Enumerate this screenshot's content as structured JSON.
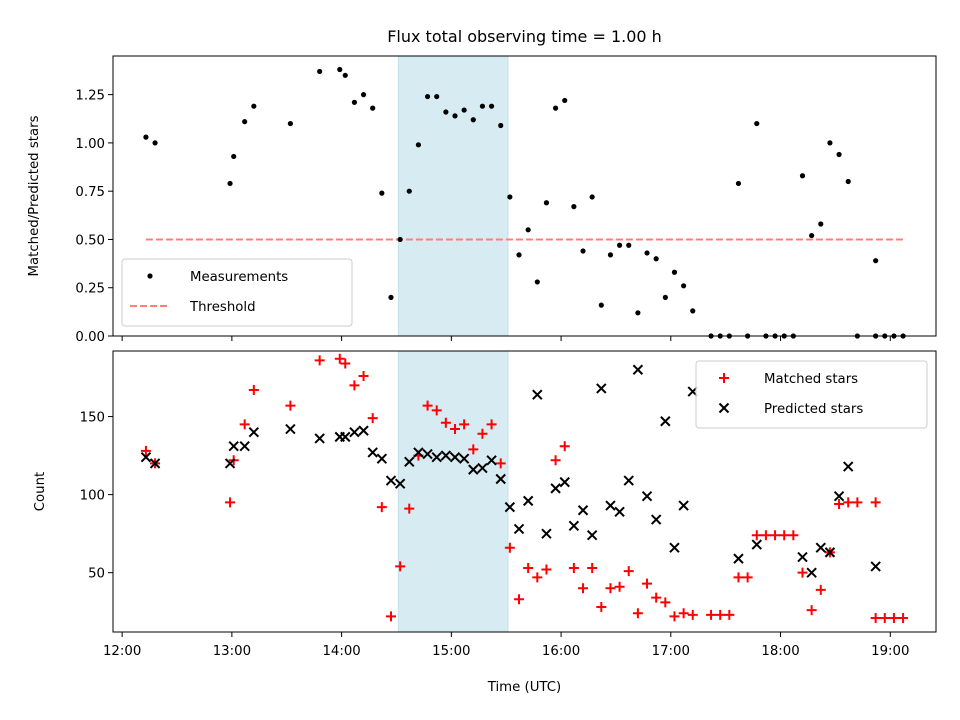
{
  "chart_data": [
    {
      "type": "scatter",
      "title": "Flux total observing time = 1.00 h",
      "ylabel": "Matched/Predicted stars",
      "xlabel": "",
      "x_axis": "time",
      "xlim": [
        "11:55",
        "19:25"
      ],
      "ylim": [
        0,
        1.45
      ],
      "yticks": [
        "0.00",
        "0.25",
        "0.50",
        "0.75",
        "1.00",
        "1.25"
      ],
      "shaded_interval": [
        "14:31",
        "15:31"
      ],
      "legend": {
        "position": "lower-left",
        "entries": [
          "Measurements",
          "Threshold"
        ]
      },
      "threshold": {
        "name": "Threshold",
        "value": 0.5,
        "x_start": "12:13",
        "x_end": "19:07",
        "color": "#ff7f7f"
      },
      "series": [
        {
          "name": "Measurements",
          "color": "#000000",
          "marker": "dot",
          "points": [
            [
              "12:13",
              1.03
            ],
            [
              "12:18",
              1.0
            ],
            [
              "12:59",
              0.79
            ],
            [
              "13:01",
              0.93
            ],
            [
              "13:07",
              1.11
            ],
            [
              "13:12",
              1.19
            ],
            [
              "13:32",
              1.1
            ],
            [
              "13:48",
              1.37
            ],
            [
              "13:59",
              1.38
            ],
            [
              "14:02",
              1.35
            ],
            [
              "14:07",
              1.21
            ],
            [
              "14:12",
              1.25
            ],
            [
              "14:17",
              1.18
            ],
            [
              "14:22",
              0.74
            ],
            [
              "14:27",
              0.2
            ],
            [
              "14:32",
              0.5
            ],
            [
              "14:37",
              0.75
            ],
            [
              "14:42",
              0.99
            ],
            [
              "14:47",
              1.24
            ],
            [
              "14:52",
              1.24
            ],
            [
              "14:57",
              1.16
            ],
            [
              "15:02",
              1.14
            ],
            [
              "15:07",
              1.17
            ],
            [
              "15:12",
              1.12
            ],
            [
              "15:17",
              1.19
            ],
            [
              "15:22",
              1.19
            ],
            [
              "15:27",
              1.09
            ],
            [
              "15:32",
              0.72
            ],
            [
              "15:37",
              0.42
            ],
            [
              "15:42",
              0.55
            ],
            [
              "15:47",
              0.28
            ],
            [
              "15:52",
              0.69
            ],
            [
              "15:57",
              1.18
            ],
            [
              "16:02",
              1.22
            ],
            [
              "16:07",
              0.67
            ],
            [
              "16:12",
              0.44
            ],
            [
              "16:17",
              0.72
            ],
            [
              "16:22",
              0.16
            ],
            [
              "16:27",
              0.42
            ],
            [
              "16:32",
              0.47
            ],
            [
              "16:37",
              0.47
            ],
            [
              "16:42",
              0.12
            ],
            [
              "16:47",
              0.43
            ],
            [
              "16:52",
              0.4
            ],
            [
              "16:57",
              0.2
            ],
            [
              "17:02",
              0.33
            ],
            [
              "17:07",
              0.26
            ],
            [
              "17:12",
              0.13
            ],
            [
              "17:22",
              0.0
            ],
            [
              "17:27",
              0.0
            ],
            [
              "17:32",
              0.0
            ],
            [
              "17:37",
              0.79
            ],
            [
              "17:42",
              0.0
            ],
            [
              "17:47",
              1.1
            ],
            [
              "17:52",
              0.0
            ],
            [
              "17:57",
              0.0
            ],
            [
              "18:02",
              0.0
            ],
            [
              "18:07",
              0.0
            ],
            [
              "18:12",
              0.83
            ],
            [
              "18:17",
              0.52
            ],
            [
              "18:22",
              0.58
            ],
            [
              "18:27",
              1.0
            ],
            [
              "18:32",
              0.94
            ],
            [
              "18:37",
              0.8
            ],
            [
              "18:42",
              0.0
            ],
            [
              "18:52",
              0.39
            ],
            [
              "18:52",
              0.0
            ],
            [
              "18:57",
              0.0
            ],
            [
              "19:02",
              0.0
            ],
            [
              "19:07",
              0.0
            ]
          ]
        }
      ]
    },
    {
      "type": "scatter",
      "title": "",
      "ylabel": "Count",
      "xlabel": "Time (UTC)",
      "x_axis": "time",
      "xlim": [
        "11:55",
        "19:25"
      ],
      "ylim": [
        12,
        192
      ],
      "yticks": [
        "50",
        "100",
        "150"
      ],
      "xticks": [
        "12:00",
        "13:00",
        "14:00",
        "15:00",
        "16:00",
        "17:00",
        "18:00",
        "19:00"
      ],
      "shaded_interval": [
        "14:31",
        "15:31"
      ],
      "legend": {
        "position": "upper-right",
        "entries": [
          "Matched stars",
          "Predicted stars"
        ]
      },
      "series": [
        {
          "name": "Matched stars",
          "color": "#ff0000",
          "marker": "plus",
          "points": [
            [
              "12:13",
              128
            ],
            [
              "12:18",
              120
            ],
            [
              "12:59",
              95
            ],
            [
              "13:01",
              122
            ],
            [
              "13:07",
              145
            ],
            [
              "13:12",
              167
            ],
            [
              "13:32",
              157
            ],
            [
              "13:48",
              186
            ],
            [
              "13:59",
              187
            ],
            [
              "14:02",
              184
            ],
            [
              "14:07",
              170
            ],
            [
              "14:12",
              176
            ],
            [
              "14:17",
              149
            ],
            [
              "14:22",
              92
            ],
            [
              "14:27",
              22
            ],
            [
              "14:32",
              54
            ],
            [
              "14:37",
              91
            ],
            [
              "14:42",
              125
            ],
            [
              "14:47",
              157
            ],
            [
              "14:52",
              154
            ],
            [
              "14:57",
              146
            ],
            [
              "15:02",
              142
            ],
            [
              "15:07",
              145
            ],
            [
              "15:12",
              129
            ],
            [
              "15:17",
              139
            ],
            [
              "15:22",
              145
            ],
            [
              "15:27",
              120
            ],
            [
              "15:32",
              66
            ],
            [
              "15:37",
              33
            ],
            [
              "15:42",
              53
            ],
            [
              "15:47",
              47
            ],
            [
              "15:52",
              52
            ],
            [
              "15:57",
              122
            ],
            [
              "16:02",
              131
            ],
            [
              "16:07",
              53
            ],
            [
              "16:12",
              40
            ],
            [
              "16:17",
              53
            ],
            [
              "16:22",
              28
            ],
            [
              "16:27",
              40
            ],
            [
              "16:32",
              41
            ],
            [
              "16:37",
              51
            ],
            [
              "16:42",
              24
            ],
            [
              "16:47",
              43
            ],
            [
              "16:52",
              34
            ],
            [
              "16:57",
              31
            ],
            [
              "17:02",
              22
            ],
            [
              "17:07",
              24
            ],
            [
              "17:12",
              23
            ],
            [
              "17:22",
              23
            ],
            [
              "17:27",
              23
            ],
            [
              "17:32",
              23
            ],
            [
              "17:37",
              47
            ],
            [
              "17:42",
              47
            ],
            [
              "17:47",
              74
            ],
            [
              "17:52",
              74
            ],
            [
              "17:57",
              74
            ],
            [
              "18:02",
              74
            ],
            [
              "18:07",
              74
            ],
            [
              "18:12",
              50
            ],
            [
              "18:17",
              26
            ],
            [
              "18:22",
              39
            ],
            [
              "18:27",
              63
            ],
            [
              "18:32",
              94
            ],
            [
              "18:37",
              95
            ],
            [
              "18:42",
              95
            ],
            [
              "18:52",
              95
            ],
            [
              "18:52",
              21
            ],
            [
              "18:57",
              21
            ],
            [
              "19:02",
              21
            ],
            [
              "19:07",
              21
            ]
          ]
        },
        {
          "name": "Predicted stars",
          "color": "#000000",
          "marker": "x",
          "points": [
            [
              "12:13",
              124
            ],
            [
              "12:18",
              120
            ],
            [
              "12:59",
              120
            ],
            [
              "13:01",
              131
            ],
            [
              "13:07",
              131
            ],
            [
              "13:12",
              140
            ],
            [
              "13:32",
              142
            ],
            [
              "13:48",
              136
            ],
            [
              "13:59",
              137
            ],
            [
              "14:02",
              137
            ],
            [
              "14:07",
              140
            ],
            [
              "14:12",
              141
            ],
            [
              "14:17",
              127
            ],
            [
              "14:22",
              123
            ],
            [
              "14:27",
              109
            ],
            [
              "14:32",
              107
            ],
            [
              "14:37",
              121
            ],
            [
              "14:42",
              127
            ],
            [
              "14:47",
              126
            ],
            [
              "14:52",
              124
            ],
            [
              "14:57",
              125
            ],
            [
              "15:02",
              124
            ],
            [
              "15:07",
              123
            ],
            [
              "15:12",
              116
            ],
            [
              "15:17",
              117
            ],
            [
              "15:22",
              122
            ],
            [
              "15:27",
              110
            ],
            [
              "15:32",
              92
            ],
            [
              "15:37",
              78
            ],
            [
              "15:42",
              96
            ],
            [
              "15:47",
              164
            ],
            [
              "15:52",
              75
            ],
            [
              "15:57",
              104
            ],
            [
              "16:02",
              108
            ],
            [
              "16:07",
              80
            ],
            [
              "16:12",
              90
            ],
            [
              "16:17",
              74
            ],
            [
              "16:22",
              168
            ],
            [
              "16:27",
              93
            ],
            [
              "16:32",
              89
            ],
            [
              "16:37",
              109
            ],
            [
              "16:42",
              180
            ],
            [
              "16:47",
              99
            ],
            [
              "16:52",
              84
            ],
            [
              "16:57",
              147
            ],
            [
              "17:02",
              66
            ],
            [
              "17:07",
              93
            ],
            [
              "17:12",
              166
            ],
            [
              "17:37",
              59
            ],
            [
              "17:47",
              68
            ],
            [
              "18:12",
              60
            ],
            [
              "18:17",
              50
            ],
            [
              "18:22",
              66
            ],
            [
              "18:27",
              63
            ],
            [
              "18:32",
              99
            ],
            [
              "18:37",
              118
            ],
            [
              "18:52",
              54
            ]
          ]
        }
      ]
    }
  ]
}
